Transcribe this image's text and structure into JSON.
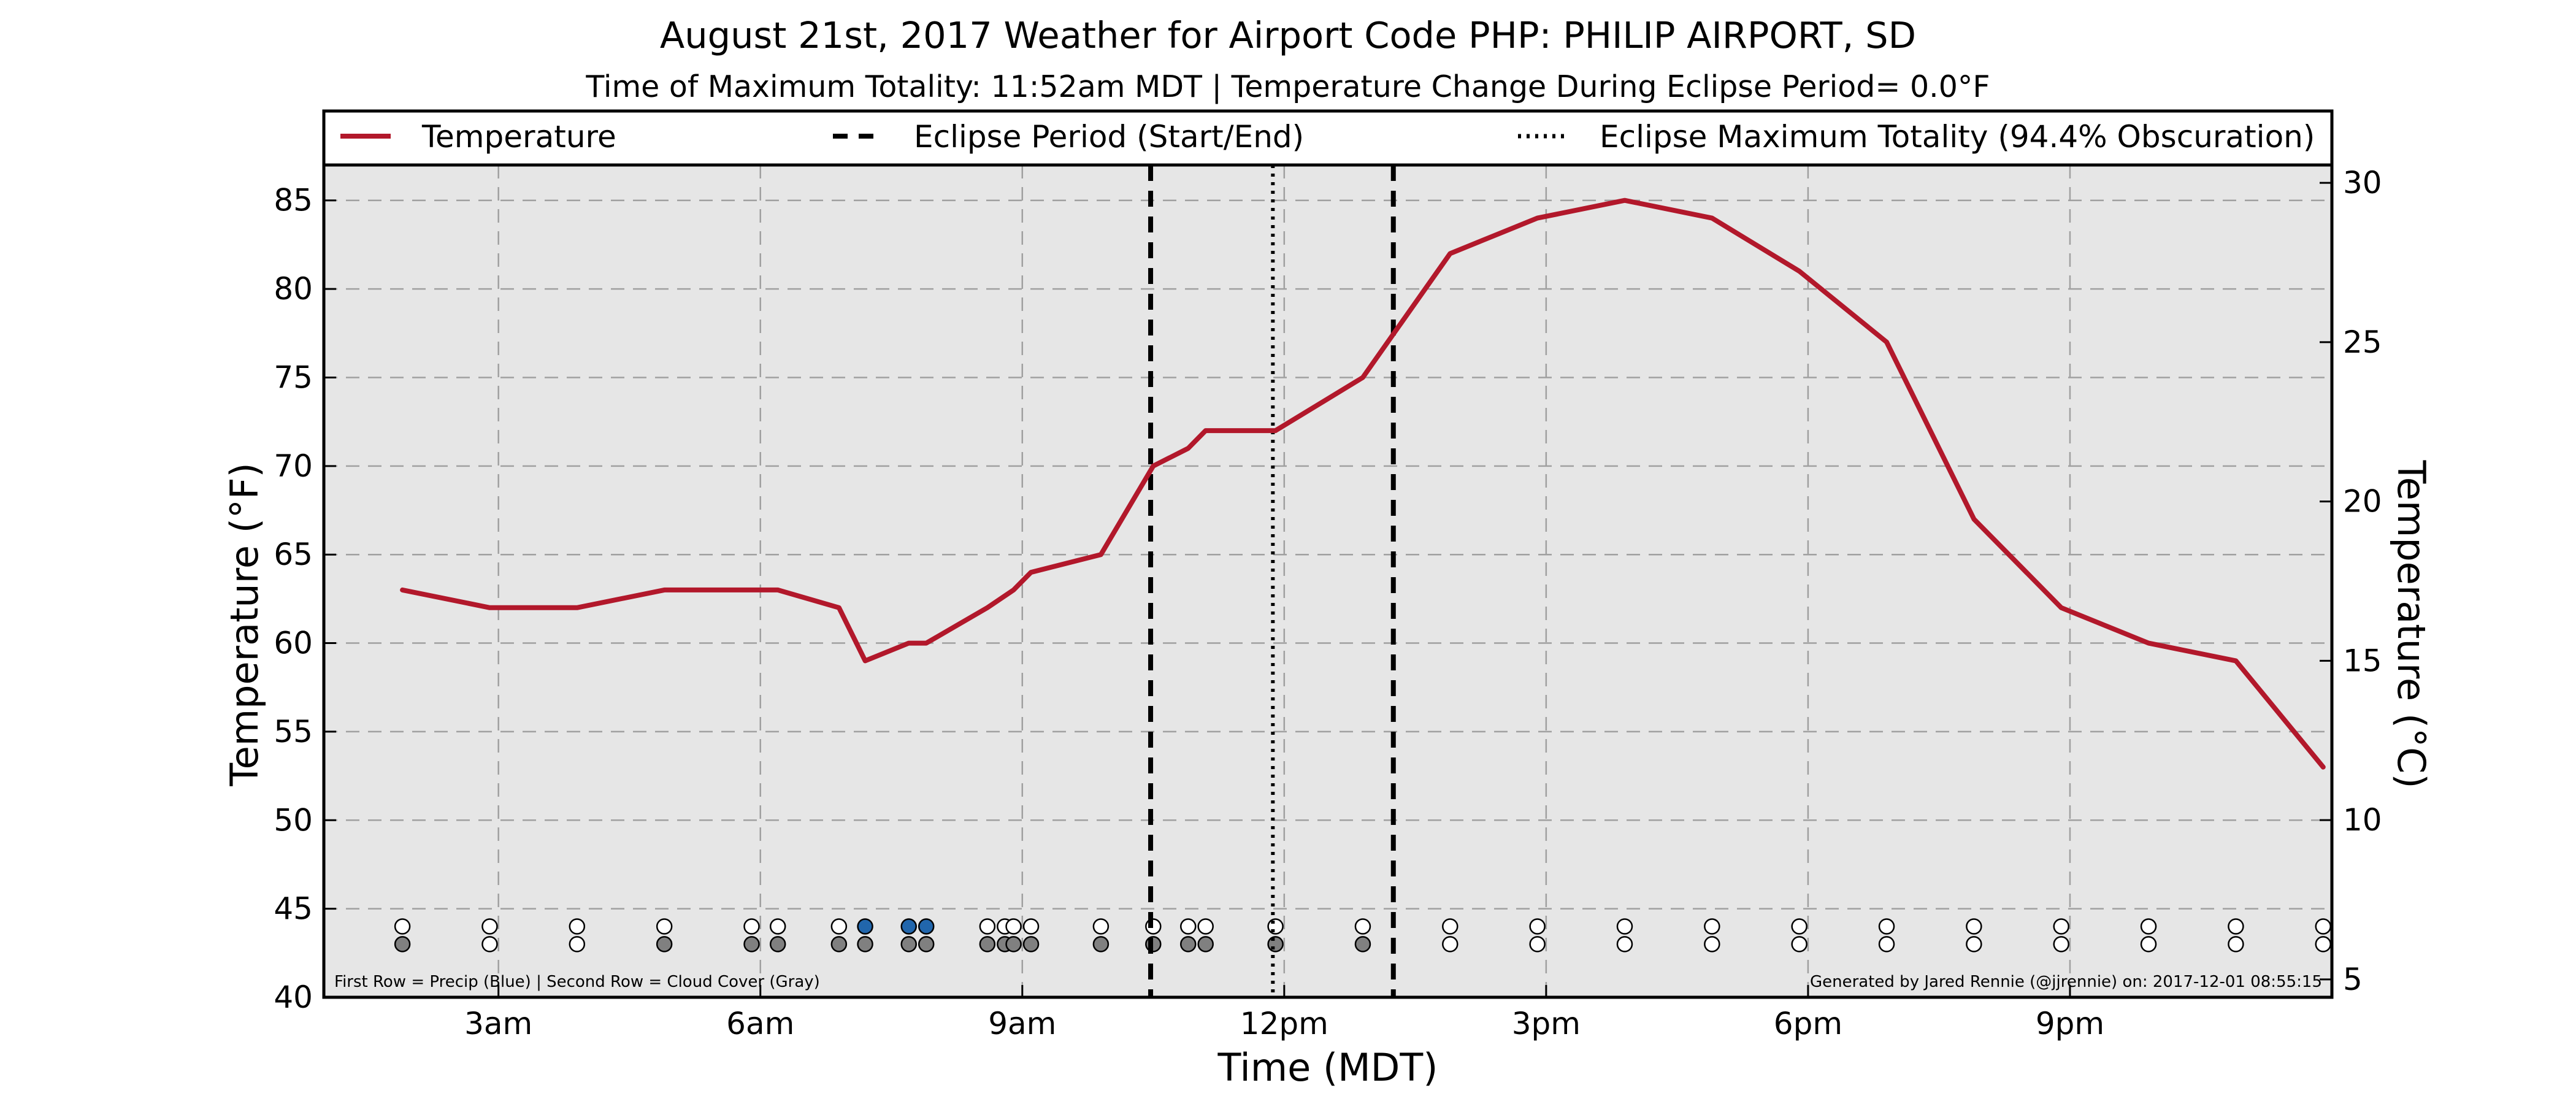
{
  "chart_data": {
    "type": "line",
    "title": "August 21st, 2017 Weather for Airport Code PHP: PHILIP AIRPORT, SD",
    "subtitle": "Time of Maximum Totality: 11:52am MDT | Temperature Change During Eclipse Period= 0.0$^\\circ$F",
    "subtitle_display": "Time of Maximum Totality: 11:52am MDT | Temperature Change During Eclipse Period= 0.0°F",
    "xlabel": "Time (MDT)",
    "ylabel": "Temperature (°F)",
    "y2label": "Temperature (°C)",
    "xlim": [
      1.0,
      24.0
    ],
    "ylim": [
      40,
      87
    ],
    "y2lim": [
      4.44,
      30.56
    ],
    "x_ticks": [
      {
        "x": 3,
        "label": "3am"
      },
      {
        "x": 6,
        "label": "6am"
      },
      {
        "x": 9,
        "label": "9am"
      },
      {
        "x": 12,
        "label": "12pm"
      },
      {
        "x": 15,
        "label": "3pm"
      },
      {
        "x": 18,
        "label": "6pm"
      },
      {
        "x": 21,
        "label": "9pm"
      }
    ],
    "y_ticks": [
      40,
      45,
      50,
      55,
      60,
      65,
      70,
      75,
      80,
      85
    ],
    "y2_ticks": [
      5,
      10,
      15,
      20,
      25,
      30
    ],
    "grid": true,
    "legend_position": "top",
    "legend": {
      "temperature": "Temperature",
      "eclipse_period": "Eclipse Period (Start/End)",
      "eclipse_max": "Eclipse Maximum Totality (94.4% Obscuration)"
    },
    "series": [
      {
        "name": "Temperature",
        "color": "#b2182b",
        "x": [
          1.9,
          2.9,
          3.9,
          4.9,
          5.9,
          6.2,
          6.9,
          7.2,
          7.7,
          7.9,
          8.6,
          8.9,
          9.1,
          9.9,
          10.5,
          10.9,
          11.1,
          11.9,
          12.9,
          13.9,
          14.9,
          15.9,
          16.9,
          17.9,
          18.9,
          19.9,
          20.9,
          21.9,
          22.9,
          23.9
        ],
        "y": [
          63,
          62,
          62,
          63,
          63,
          63,
          62,
          59,
          60,
          60,
          62,
          63,
          64,
          65,
          70,
          71,
          72,
          72,
          75,
          82,
          84,
          85,
          84,
          81,
          77,
          67,
          62,
          60,
          59,
          53
        ]
      }
    ],
    "eclipse_start": 10.47,
    "eclipse_end": 13.25,
    "eclipse_max": 11.87,
    "precip_row_y": 44.0,
    "cloud_row_y": 43.0,
    "precip_row": {
      "x": [
        1.9,
        2.9,
        3.9,
        4.9,
        5.9,
        6.2,
        6.9,
        7.2,
        7.7,
        7.9,
        8.6,
        8.8,
        8.9,
        9.1,
        9.9,
        10.5,
        10.9,
        11.1,
        11.9,
        12.9,
        13.9,
        14.9,
        15.9,
        16.9,
        17.9,
        18.9,
        19.9,
        20.9,
        21.9,
        22.9,
        23.9
      ],
      "blue": [
        false,
        false,
        false,
        false,
        false,
        false,
        false,
        true,
        true,
        true,
        false,
        false,
        false,
        false,
        false,
        false,
        false,
        false,
        false,
        false,
        false,
        false,
        false,
        false,
        false,
        false,
        false,
        false,
        false,
        false,
        false
      ]
    },
    "cloud_row": {
      "x": [
        1.9,
        2.9,
        3.9,
        4.9,
        5.9,
        6.2,
        6.9,
        7.2,
        7.7,
        7.9,
        8.6,
        8.8,
        8.9,
        9.1,
        9.9,
        10.5,
        10.9,
        11.1,
        11.9,
        12.9,
        13.9,
        14.9,
        15.9,
        16.9,
        17.9,
        18.9,
        19.9,
        20.9,
        21.9,
        22.9,
        23.9
      ],
      "gray": [
        true,
        false,
        false,
        true,
        true,
        true,
        true,
        true,
        true,
        true,
        true,
        true,
        true,
        true,
        true,
        true,
        true,
        true,
        true,
        true,
        false,
        false,
        false,
        false,
        false,
        false,
        false,
        false,
        false,
        false,
        false
      ]
    },
    "footer_left": "First Row = Precip (Blue) | Second Row = Cloud Cover (Gray)",
    "footer_right": "Generated by Jared Rennie (@jjrennie) on: 2017-12-01 08:55:15",
    "colors": {
      "plot_background": "#e6e6e6",
      "temperature_line": "#b2182b",
      "precip": "#2166ac",
      "cloud": "#808080",
      "empty_marker": "#ffffff",
      "grid": "#a0a0a0"
    }
  }
}
